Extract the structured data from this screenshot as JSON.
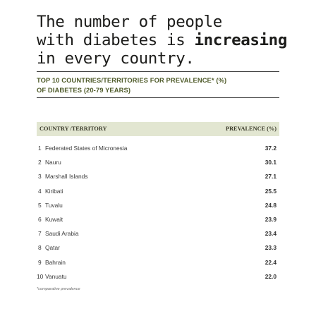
{
  "headline": {
    "line1": "The number of people",
    "line2_prefix": "with diabetes is ",
    "line2_bold": "increasing",
    "line3": "in every country."
  },
  "subtitle": {
    "line1": "TOP 10 COUNTRIES/TERRITORIES FOR PREVALENCE* (%)",
    "line2": "OF DIABETES (20-79 YEARS)"
  },
  "footnote": "*comparative prevalence",
  "chart_data": {
    "type": "table",
    "title": "TOP 10 COUNTRIES/TERRITORIES FOR PREVALENCE* (%) OF DIABETES (20-79 YEARS)",
    "columns": [
      "COUNTRY /TERRITORY",
      "PREVALENCE (%)"
    ],
    "rows": [
      {
        "rank": "1",
        "country": "Federated States of Micronesia",
        "value": "37.2"
      },
      {
        "rank": "2",
        "country": "Nauru",
        "value": "30.1"
      },
      {
        "rank": "3",
        "country": "Marshall Islands",
        "value": "27.1"
      },
      {
        "rank": "4",
        "country": "Kiribati",
        "value": "25.5"
      },
      {
        "rank": "5",
        "country": "Tuvalu",
        "value": "24.8"
      },
      {
        "rank": "6",
        "country": "Kuwait",
        "value": "23.9"
      },
      {
        "rank": "7",
        "country": "Saudi Arabia",
        "value": "23.4"
      },
      {
        "rank": "8",
        "country": "Qatar",
        "value": "23.3"
      },
      {
        "rank": "9",
        "country": "Bahrain",
        "value": "22.4"
      },
      {
        "rank": "10",
        "country": "Vanuatu",
        "value": "22.0"
      }
    ]
  }
}
